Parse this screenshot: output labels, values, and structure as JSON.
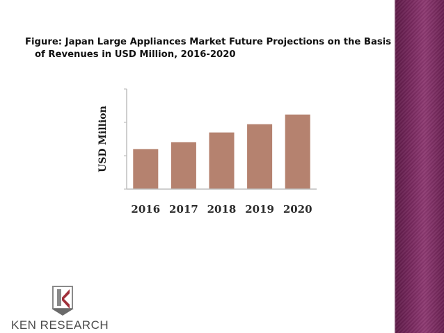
{
  "slide": {
    "title_line1": "Figure: Japan Large Appliances Market Future Projections on the Basis",
    "title_line2": "of Revenues in USD Million, 2016-2020",
    "logo_text": "KEN RESEARCH"
  },
  "colors": {
    "bar": "#b5826f",
    "axis": "#bfbfbf",
    "sidebar": "#7a2a60"
  },
  "chart_data": {
    "type": "bar",
    "categories": [
      "2016",
      "2017",
      "2018",
      "2019",
      "2020"
    ],
    "values": [
      58,
      68,
      82,
      94,
      108
    ],
    "ylabel": "USD Million",
    "xlabel": "",
    "ylim": [
      0,
      145
    ],
    "grid": false
  }
}
